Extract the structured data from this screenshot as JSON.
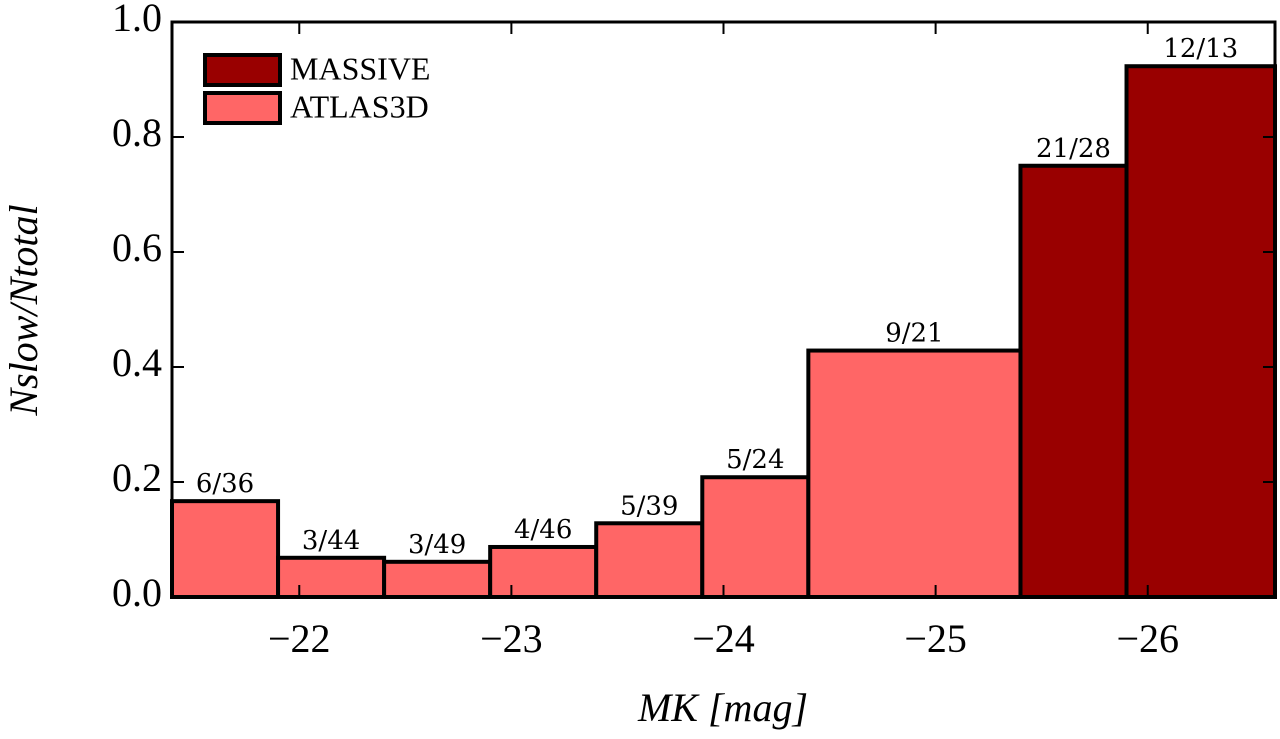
{
  "chart_data": {
    "type": "histogram",
    "xlabel": "MK [mag]",
    "ylabel": "Nslow/Ntotal",
    "xlim": [
      -21.4,
      -26.6
    ],
    "ylim": [
      0,
      1
    ],
    "xticks": [
      {
        "value": -22,
        "label": "−22"
      },
      {
        "value": -23,
        "label": "−23"
      },
      {
        "value": -24,
        "label": "−24"
      },
      {
        "value": -25,
        "label": "−25"
      },
      {
        "value": -26,
        "label": "−26"
      }
    ],
    "yticks": [
      {
        "value": 0,
        "label": "0.0"
      },
      0.2,
      0.4,
      0.6,
      0.8,
      {
        "value": 1,
        "label": "1.0"
      }
    ],
    "legend": "upper left",
    "series": [
      {
        "name": "MASSIVE",
        "color": "#990000",
        "bins": [
          -25.4,
          -25.9,
          -26.6
        ],
        "values": [
          0.75,
          0.9231
        ],
        "value_labels": [
          "21/28",
          "12/13"
        ]
      },
      {
        "name": "ATLAS3D",
        "color": "#ff6666",
        "bins": [
          -21.4,
          -21.9,
          -22.4,
          -22.9,
          -23.4,
          -23.9,
          -24.4,
          -25.4
        ],
        "values": [
          0.1667,
          0.0682,
          0.0612,
          0.087,
          0.1282,
          0.2083,
          0.4286
        ],
        "value_labels": [
          "6/36",
          "3/44",
          "3/49",
          "4/46",
          "5/39",
          "5/24",
          "9/21"
        ]
      }
    ]
  }
}
